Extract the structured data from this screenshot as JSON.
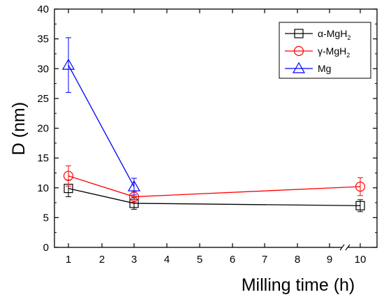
{
  "chart_data": {
    "type": "line",
    "xlabel": "Milling time (h)",
    "ylabel": "D (nm)",
    "xlim": [
      0.5,
      10.5
    ],
    "ylim": [
      0,
      40
    ],
    "x_ticks": [
      {
        "value": 1,
        "label": "1"
      },
      {
        "value": 2,
        "label": "2"
      },
      {
        "value": 3,
        "label": "3"
      },
      {
        "value": 4,
        "label": "4"
      },
      {
        "value": 5,
        "label": "5"
      },
      {
        "value": 6,
        "label": "6"
      },
      {
        "value": 7,
        "label": "7"
      },
      {
        "value": 8,
        "label": "8"
      },
      {
        "value": 9,
        "label": "9"
      },
      {
        "value": 10,
        "label": "10"
      }
    ],
    "x_break": {
      "from": 3,
      "to": 10,
      "displayed_between": [
        9,
        10
      ]
    },
    "y_ticks": [
      0,
      5,
      10,
      15,
      20,
      25,
      30,
      35,
      40
    ],
    "grid": false,
    "legend_position": "top-right",
    "series": [
      {
        "name": "α-MgH2",
        "label_main": "α-MgH",
        "label_sub": "2",
        "color": "#000000",
        "marker": "square",
        "x": [
          1,
          3,
          10
        ],
        "y": [
          9.9,
          7.4,
          7.0
        ],
        "err": [
          1.4,
          1.0,
          1.0
        ]
      },
      {
        "name": "γ-MgH2",
        "label_main": "γ-MgH",
        "label_sub": "2",
        "color": "#ff0000",
        "marker": "circle",
        "x": [
          1,
          3,
          10
        ],
        "y": [
          12.0,
          8.5,
          10.2
        ],
        "err": [
          1.7,
          0.9,
          1.5
        ]
      },
      {
        "name": "Mg",
        "label_main": "Mg",
        "label_sub": "",
        "color": "#0000ff",
        "marker": "triangle",
        "x": [
          1,
          3
        ],
        "y": [
          30.6,
          10.2
        ],
        "err": [
          4.6,
          1.4
        ]
      }
    ]
  }
}
